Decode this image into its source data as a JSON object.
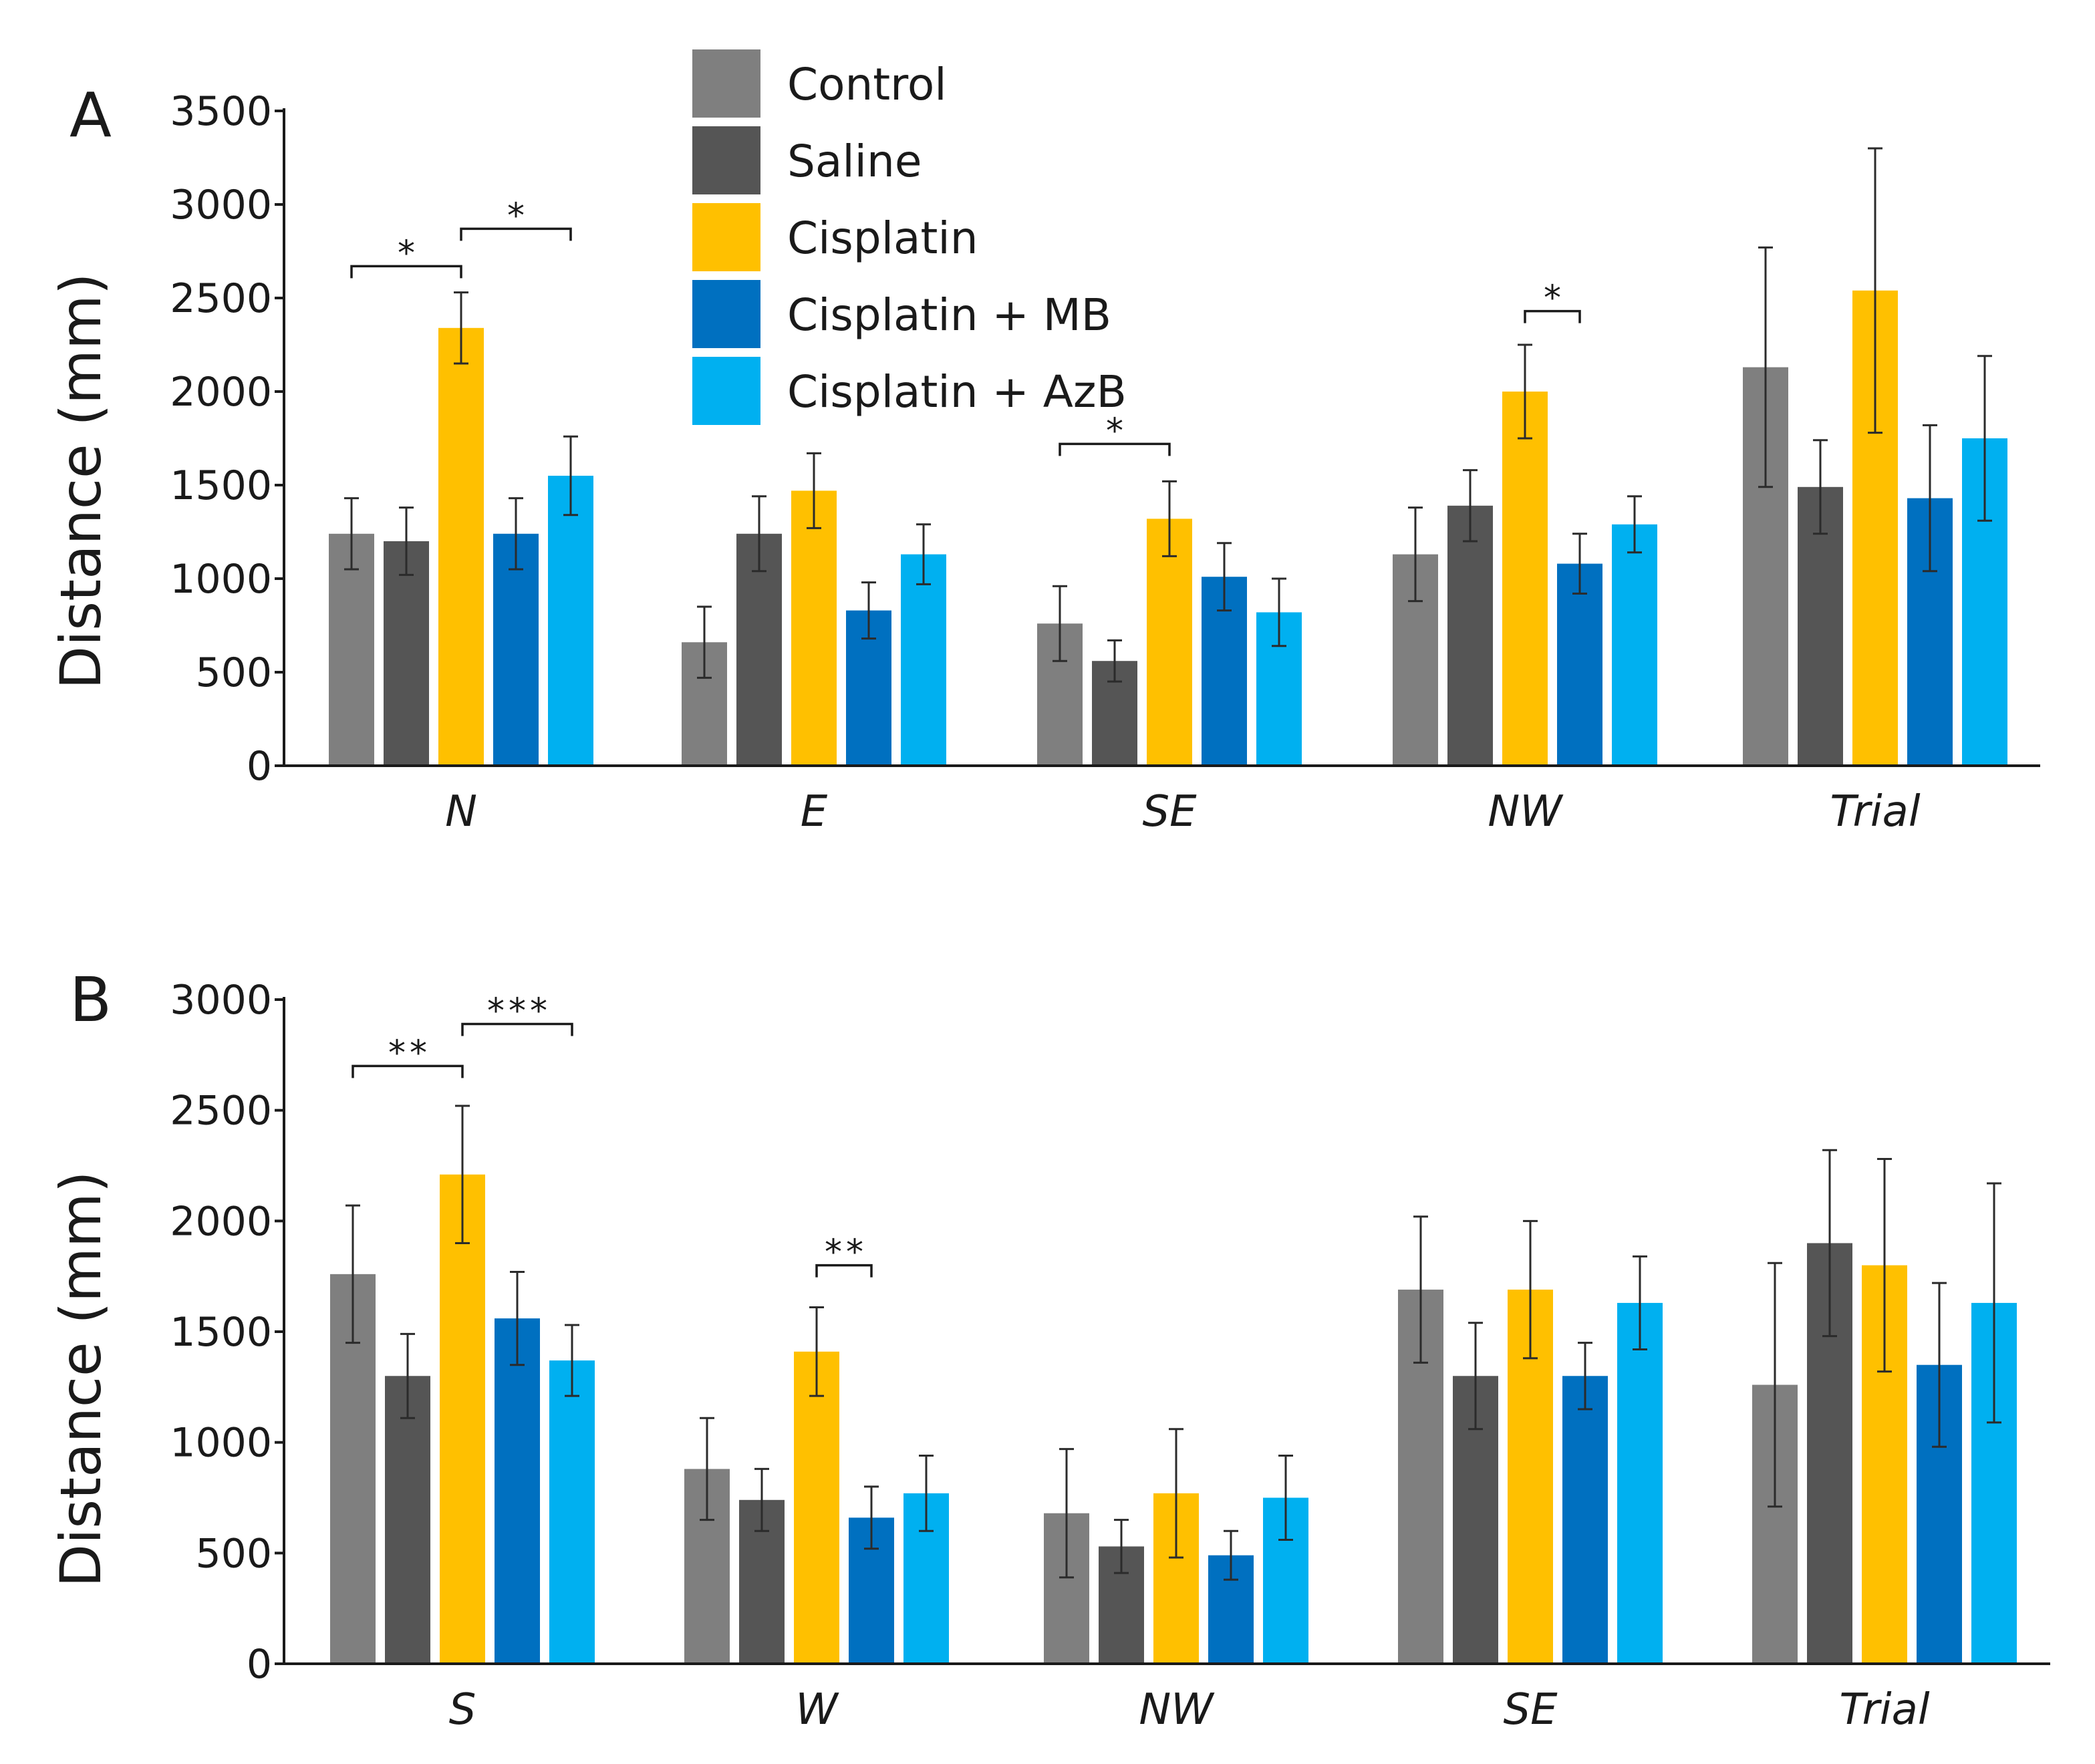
{
  "legend": [
    {
      "label": "Control",
      "color": "#7f7f7f"
    },
    {
      "label": "Saline",
      "color": "#555555"
    },
    {
      "label": "Cisplatin",
      "color": "#ffc000"
    },
    {
      "label": "Cisplatin + MB",
      "color": "#0070c0"
    },
    {
      "label": "Cisplatin + AzB",
      "color": "#00b0f0"
    }
  ],
  "chart_data": [
    {
      "panel": "A",
      "type": "bar",
      "ylabel": "Distance (mm)",
      "ylim": [
        0,
        3500
      ],
      "yticks": [
        0,
        500,
        1000,
        1500,
        2000,
        2500,
        3000,
        3500
      ],
      "categories": [
        "N",
        "E",
        "SE",
        "NW",
        "Trial"
      ],
      "error_bars": true,
      "series": [
        {
          "name": "Control",
          "color": "#7f7f7f",
          "values": [
            1240,
            660,
            760,
            1130,
            2130
          ],
          "errors": [
            190,
            190,
            200,
            250,
            640
          ]
        },
        {
          "name": "Saline",
          "color": "#555555",
          "values": [
            1200,
            1240,
            560,
            1390,
            1490
          ],
          "errors": [
            180,
            200,
            110,
            190,
            250
          ]
        },
        {
          "name": "Cisplatin",
          "color": "#ffc000",
          "values": [
            2340,
            1470,
            1320,
            2000,
            2540
          ],
          "errors": [
            190,
            200,
            200,
            250,
            760
          ]
        },
        {
          "name": "Cisplatin + MB",
          "color": "#0070c0",
          "values": [
            1240,
            830,
            1010,
            1080,
            1430
          ],
          "errors": [
            190,
            150,
            180,
            160,
            390
          ]
        },
        {
          "name": "Cisplatin + AzB",
          "color": "#00b0f0",
          "values": [
            1550,
            1130,
            820,
            1290,
            1750
          ],
          "errors": [
            210,
            160,
            180,
            150,
            440
          ]
        }
      ],
      "significance": [
        {
          "category": 0,
          "from_series": 0,
          "to_series": 2,
          "label": "*",
          "level": 2670
        },
        {
          "category": 0,
          "from_series": 2,
          "to_series": 4,
          "label": "*",
          "level": 2870
        },
        {
          "category": 2,
          "from_series": 0,
          "to_series": 2,
          "label": "*",
          "level": 1720
        },
        {
          "category": 3,
          "from_series": 2,
          "to_series": 3,
          "label": "*",
          "level": 2430
        }
      ]
    },
    {
      "panel": "B",
      "type": "bar",
      "ylabel": "Distance (mm)",
      "ylim": [
        0,
        3000
      ],
      "yticks": [
        0,
        500,
        1000,
        1500,
        2000,
        2500,
        3000
      ],
      "categories": [
        "S",
        "W",
        "NW",
        "SE",
        "Trial"
      ],
      "error_bars": true,
      "series": [
        {
          "name": "Control",
          "color": "#7f7f7f",
          "values": [
            1760,
            880,
            680,
            1690,
            1260
          ],
          "errors": [
            310,
            230,
            290,
            330,
            550
          ]
        },
        {
          "name": "Saline",
          "color": "#555555",
          "values": [
            1300,
            740,
            530,
            1300,
            1900
          ],
          "errors": [
            190,
            140,
            120,
            240,
            420
          ]
        },
        {
          "name": "Cisplatin",
          "color": "#ffc000",
          "values": [
            2210,
            1410,
            770,
            1690,
            1800
          ],
          "errors": [
            310,
            200,
            290,
            310,
            480
          ]
        },
        {
          "name": "Cisplatin + MB",
          "color": "#0070c0",
          "values": [
            1560,
            660,
            490,
            1300,
            1350
          ],
          "errors": [
            210,
            140,
            110,
            150,
            370
          ]
        },
        {
          "name": "Cisplatin + AzB",
          "color": "#00b0f0",
          "values": [
            1370,
            770,
            750,
            1630,
            1630
          ],
          "errors": [
            160,
            170,
            190,
            210,
            540
          ]
        }
      ],
      "significance": [
        {
          "category": 0,
          "from_series": 0,
          "to_series": 2,
          "label": "**",
          "level": 2700
        },
        {
          "category": 0,
          "from_series": 2,
          "to_series": 4,
          "label": "***",
          "level": 2890
        },
        {
          "category": 1,
          "from_series": 2,
          "to_series": 3,
          "label": "**",
          "level": 1800
        }
      ]
    }
  ]
}
